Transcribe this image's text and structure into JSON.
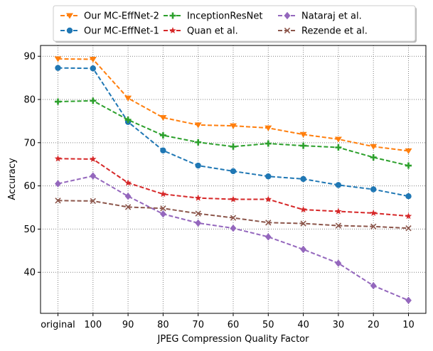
{
  "chart_data": {
    "type": "line",
    "title": "",
    "xlabel": "JPEG Compression Quality Factor",
    "ylabel": "Accuracy",
    "categories": [
      "original",
      "100",
      "90",
      "80",
      "70",
      "60",
      "50",
      "40",
      "30",
      "20",
      "10"
    ],
    "ylim": [
      30.5,
      92.5
    ],
    "yticks": [
      40,
      50,
      60,
      70,
      80,
      90
    ],
    "grid": true,
    "legend_position": "top",
    "series": [
      {
        "name": "Our MC-EffNet-2",
        "color": "#ff7f0e",
        "marker": "triangle-down",
        "values": [
          89.4,
          89.3,
          80.3,
          75.8,
          74.1,
          73.9,
          73.4,
          71.9,
          70.8,
          69.1,
          68.1
        ]
      },
      {
        "name": "Our MC-EffNet-1",
        "color": "#1f77b4",
        "marker": "circle",
        "values": [
          87.3,
          87.2,
          74.8,
          68.2,
          64.7,
          63.4,
          62.2,
          61.6,
          60.2,
          59.2,
          57.6
        ]
      },
      {
        "name": "InceptionResNet",
        "color": "#2ca02c",
        "marker": "plus",
        "values": [
          79.5,
          79.7,
          75.3,
          71.7,
          70.1,
          69.1,
          69.8,
          69.3,
          68.9,
          66.6,
          64.7
        ]
      },
      {
        "name": "Quan et al.",
        "color": "#d62728",
        "marker": "star",
        "values": [
          66.3,
          66.2,
          60.7,
          58.1,
          57.2,
          56.9,
          56.9,
          54.5,
          54.1,
          53.7,
          53.0
        ]
      },
      {
        "name": "Nataraj et al.",
        "color": "#9467bd",
        "marker": "diamond",
        "values": [
          60.5,
          62.3,
          57.6,
          53.5,
          51.4,
          50.2,
          48.2,
          45.3,
          42.1,
          36.9,
          33.5
        ]
      },
      {
        "name": "Rezende et al.",
        "color": "#8c564b",
        "marker": "x",
        "values": [
          56.6,
          56.5,
          55.1,
          54.8,
          53.6,
          52.6,
          51.5,
          51.3,
          50.8,
          50.6,
          50.2
        ]
      }
    ]
  }
}
